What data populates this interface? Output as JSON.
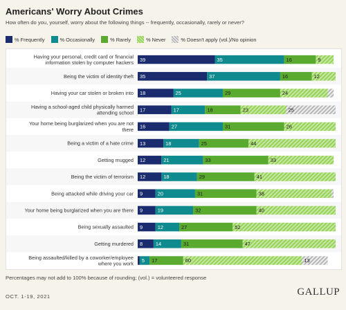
{
  "header": {
    "title": "Americans' Worry About Crimes",
    "subtitle": "How often do you, yourself, worry about the following things -- frequently, occasionally, rarely or never?"
  },
  "footer": {
    "note": "Percentages may not add to 100% because of rounding; (vol.) = volunteered response",
    "date": "OCT. 1-19, 2021",
    "logo": "GALLUP"
  },
  "chart_data": {
    "type": "bar",
    "orientation": "horizontal",
    "stacked": true,
    "legend_position": "top-left",
    "xlim": [
      0,
      100
    ],
    "categories": [
      "Having your personal, credit card or financial information stolen by computer hackers",
      "Being the victim of identity theft",
      "Having your car stolen or broken into",
      "Having a school-aged child physically harmed attending school",
      "Your home being burglarized when you are not there",
      "Being a victim of a hate crime",
      "Getting mugged",
      "Being the victim of terrorism",
      "Being attacked while driving your car",
      "Your home being burglarized when you are there",
      "Being sexually assaulted",
      "Getting murdered",
      "Being assaulted/killed by a coworker/employee where you work"
    ],
    "series": [
      {
        "name": "% Frequently",
        "color": "#1a2b6e",
        "label_color": "#ffffff",
        "values": [
          39,
          35,
          18,
          17,
          16,
          13,
          12,
          12,
          9,
          9,
          9,
          8,
          1
        ]
      },
      {
        "name": "% Occasionally",
        "color": "#0f8a8e",
        "label_color": "#ffffff",
        "values": [
          35,
          37,
          25,
          17,
          27,
          18,
          21,
          18,
          20,
          19,
          12,
          14,
          5
        ]
      },
      {
        "name": "% Rarely",
        "color": "#5aaa30",
        "label_color": "#1a1a1a",
        "values": [
          16,
          16,
          29,
          18,
          31,
          25,
          33,
          29,
          31,
          32,
          27,
          31,
          17
        ]
      },
      {
        "name": "% Never",
        "color": "#8fd04e",
        "pattern": "never",
        "label_color": "#1a1a1a",
        "values": [
          9,
          12,
          24,
          23,
          26,
          44,
          33,
          41,
          38,
          40,
          52,
          47,
          60
        ]
      },
      {
        "name": "% Doesn't apply (vol.)/No opinion",
        "color": "#b3b3b3",
        "pattern": "hatch",
        "label_color": "#1a1a1a",
        "values": [
          0,
          0,
          3,
          25,
          0,
          0,
          0,
          0,
          1,
          0,
          0,
          0,
          13
        ]
      }
    ],
    "value_labels": [
      [
        "39",
        "35",
        "16",
        "9",
        ""
      ],
      [
        "35",
        "37",
        "16",
        "12",
        ""
      ],
      [
        "18",
        "25",
        "29",
        "24",
        ""
      ],
      [
        "17",
        "17",
        "18",
        "23",
        "25"
      ],
      [
        "16",
        "27",
        "31",
        "26",
        ""
      ],
      [
        "13",
        "18",
        "25",
        "44",
        ""
      ],
      [
        "12",
        "21",
        "33",
        "33",
        ""
      ],
      [
        "12",
        "18",
        "29",
        "41",
        ""
      ],
      [
        "9",
        "20",
        "31",
        "38",
        ""
      ],
      [
        "9",
        "19",
        "32",
        "40",
        ""
      ],
      [
        "9",
        "12",
        "27",
        "52",
        ""
      ],
      [
        "8",
        "14",
        "31",
        "47",
        ""
      ],
      [
        "",
        "5",
        "17",
        "60",
        "13"
      ]
    ]
  }
}
